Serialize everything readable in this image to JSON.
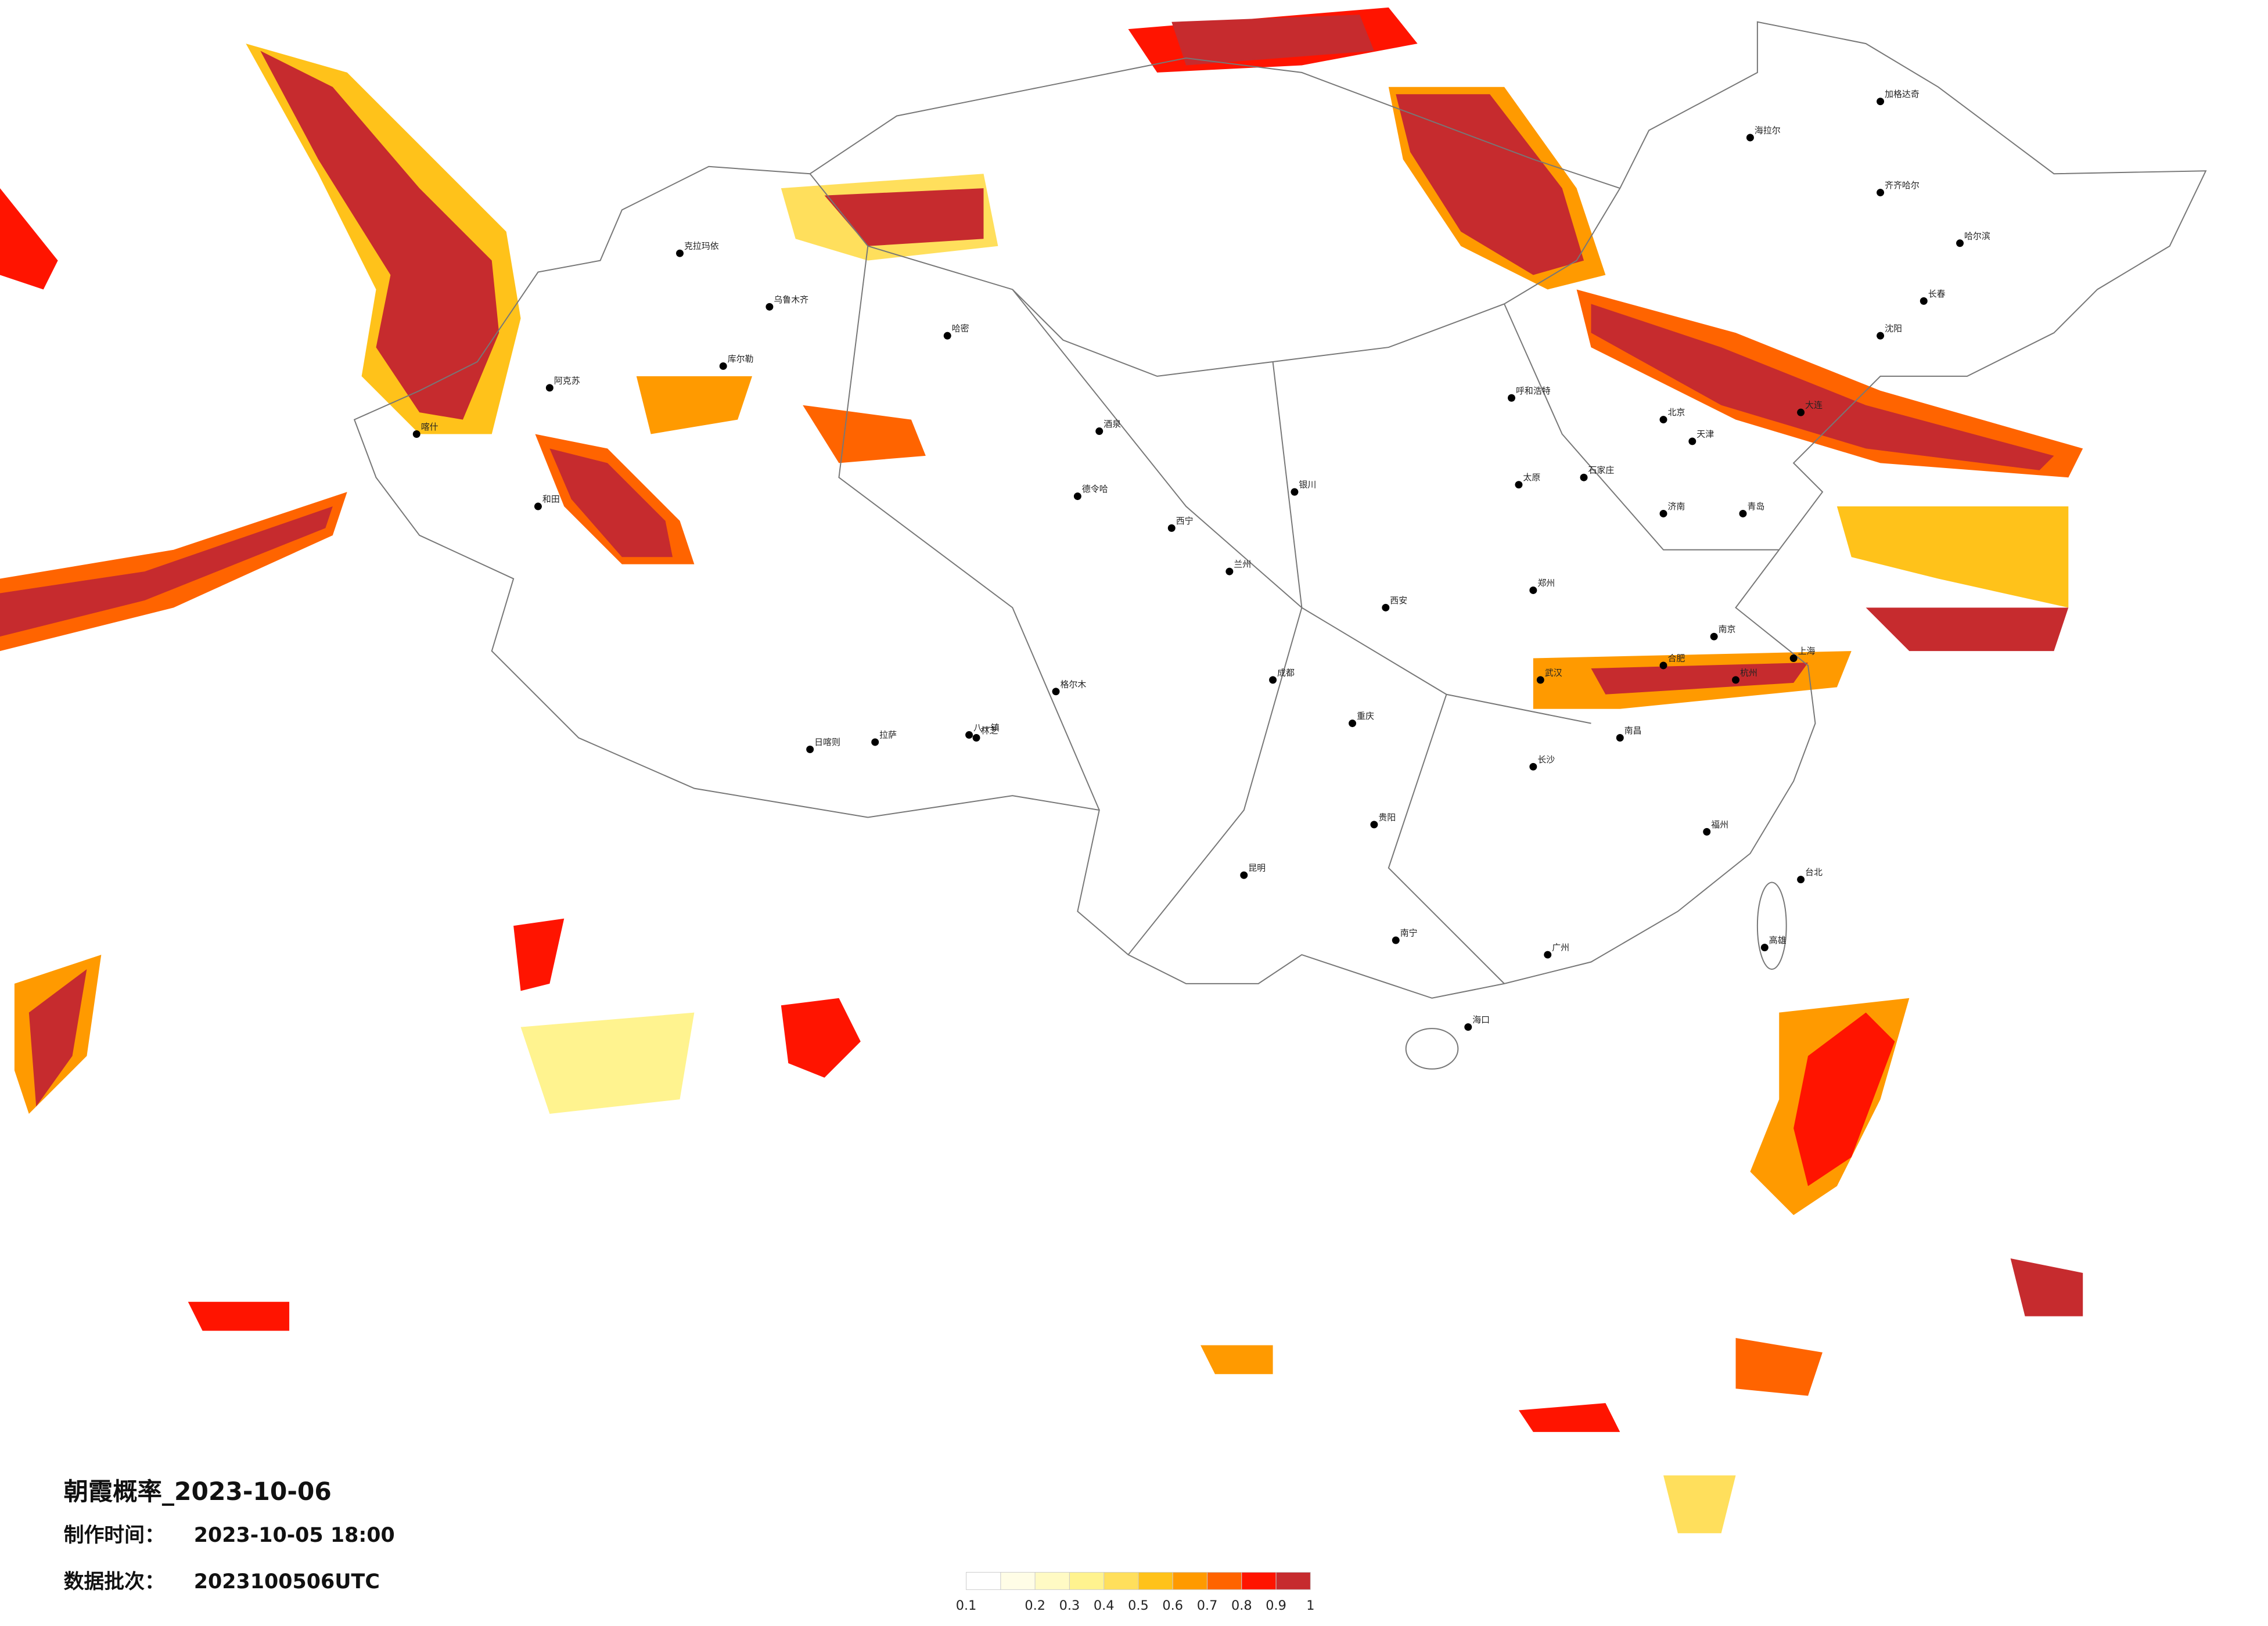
{
  "title": "朝霞概率_2023-10-06",
  "made_label": "制作时间：",
  "made_time": "2023-10-05 18:00",
  "batch_label": "数据批次：",
  "batch": "2023100506UTC",
  "legend": {
    "colors": [
      "#fffde6",
      "#fffac4",
      "#fff38f",
      "#ffdf5c",
      "#ffc21a",
      "#ff9a00",
      "#ff6400",
      "#ff1400",
      "#c62b2e"
    ],
    "extra_color": "#ffffff",
    "ticks": [
      0.1,
      0.2,
      0.3,
      0.4,
      0.5,
      0.6,
      0.7,
      0.8,
      0.9,
      1
    ]
  },
  "cities": [
    "海拉尔",
    "加格达奇",
    "齐齐哈尔",
    "哈尔滨",
    "长春",
    "沈阳",
    "大连",
    "呼和浩特",
    "北京",
    "天津",
    "石家庄",
    "太原",
    "济南",
    "青岛",
    "郑州",
    "西安",
    "兰州",
    "西宁",
    "银川",
    "乌鲁木齐",
    "克拉玛依",
    "哈密",
    "库尔勒",
    "阿克苏",
    "和田",
    "喀什",
    "拉萨",
    "日喀则",
    "八一镇",
    "林芝",
    "成都",
    "重庆",
    "贵阳",
    "昆明",
    "南宁",
    "海口",
    "广州",
    "长沙",
    "武汉",
    "南昌",
    "福州",
    "杭州",
    "上海",
    "南京",
    "合肥",
    "台北",
    "高雄",
    "格尔木",
    "德令哈",
    "酒泉"
  ]
}
